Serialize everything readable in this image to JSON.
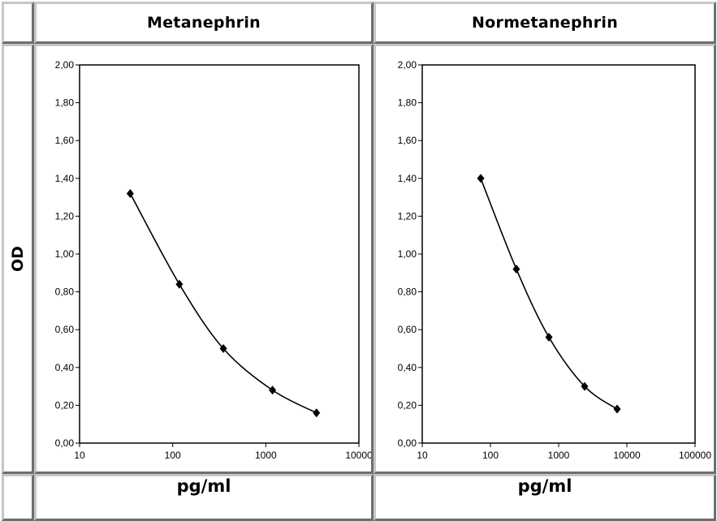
{
  "header": {
    "left": "Metanephrin",
    "right": "Normetanephrin"
  },
  "ylabel": "OD",
  "xlabel_left": "pg/ml",
  "xlabel_right": "pg/ml",
  "chart_data": [
    {
      "type": "scatter",
      "title": "Metanephrin",
      "xlabel": "pg/ml",
      "ylabel": "OD",
      "xscale": "log",
      "xlim": [
        10,
        10000
      ],
      "ylim": [
        0,
        2
      ],
      "x_ticks": [
        "10",
        "100",
        "1000",
        "10000"
      ],
      "y_ticks": [
        "0,00",
        "0,20",
        "0,40",
        "0,60",
        "0,80",
        "1,00",
        "1,20",
        "1,40",
        "1,60",
        "1,80",
        "2,00"
      ],
      "grid": false,
      "marker": "diamond",
      "curve": "smooth",
      "series": [
        {
          "x": [
            35,
            118,
            350,
            1180,
            3500
          ],
          "y": [
            1.32,
            0.84,
            0.5,
            0.28,
            0.16
          ]
        }
      ]
    },
    {
      "type": "scatter",
      "title": "Normetanephrin",
      "xlabel": "pg/ml",
      "ylabel": "OD",
      "xscale": "log",
      "xlim": [
        10,
        100000
      ],
      "ylim": [
        0,
        2
      ],
      "x_ticks": [
        "10",
        "100",
        "1000",
        "10000",
        "100000"
      ],
      "y_ticks": [
        "0,00",
        "0,20",
        "0,40",
        "0,60",
        "0,80",
        "1,00",
        "1,20",
        "1,40",
        "1,60",
        "1,80",
        "2,00"
      ],
      "grid": false,
      "marker": "diamond",
      "curve": "smooth",
      "series": [
        {
          "x": [
            72,
            240,
            720,
            2400,
            7200
          ],
          "y": [
            1.4,
            0.92,
            0.56,
            0.3,
            0.18
          ]
        }
      ]
    }
  ]
}
